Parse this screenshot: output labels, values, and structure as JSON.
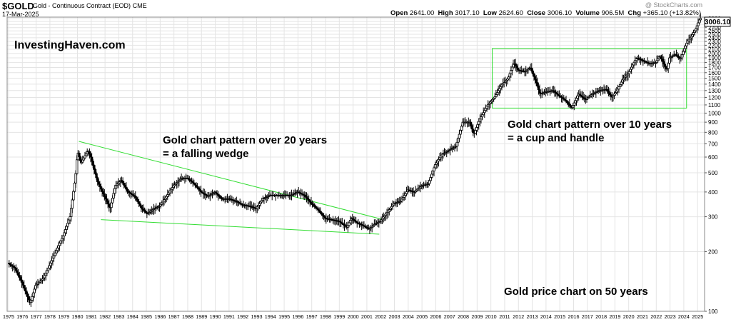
{
  "header": {
    "symbol": "$GOLD",
    "description": "Gold - Continuous Contract (EOD)",
    "exchange": "CME",
    "date": "17-Mar-2025",
    "watermark": "@ StockCharts.com",
    "open_label": "Open",
    "open": "2641.00",
    "high_label": "High",
    "high": "3017.10",
    "low_label": "Low",
    "low": "2624.60",
    "close_label": "Close",
    "close": "3006.10",
    "volume_label": "Volume",
    "volume": "906.5M",
    "chg_label": "Chg",
    "chg": "+365.10 (+13.82%)"
  },
  "annotations": {
    "brand": "InvestingHaven.com",
    "wedge_line1": "Gold chart pattern over 20 years",
    "wedge_line2": "= a falling wedge",
    "cup_line1": "Gold chart pattern over 10 years",
    "cup_line2": "= a cup and handle",
    "footer": "Gold price chart on 50 years"
  },
  "colors": {
    "pattern": "#33dd33",
    "candle": "#000000",
    "grid": "#e4e4e4",
    "tag_bg": "#ffffff"
  },
  "chart_data": {
    "type": "candlestick",
    "y_scale": "log",
    "ylim": [
      100,
      3050
    ],
    "x_range": [
      1975,
      2025.3
    ],
    "grid": true,
    "y_ticks": [
      100,
      200,
      300,
      400,
      500,
      600,
      700,
      800,
      900,
      1000,
      1100,
      1200,
      1300,
      1400,
      1500,
      1600,
      1700,
      1800,
      1900,
      2000,
      2100,
      2200,
      2300,
      2400,
      2500,
      2600,
      2700,
      2800,
      2900,
      3000
    ],
    "x_ticks": [
      "1975",
      "1976",
      "1977",
      "1978",
      "1979",
      "1980",
      "1981",
      "1982",
      "1983",
      "1984",
      "1985",
      "1986",
      "1987",
      "1988",
      "1989",
      "1990",
      "1991",
      "1992",
      "1993",
      "1994",
      "1995",
      "1996",
      "1997",
      "1998",
      "1999",
      "2000",
      "2001",
      "2002",
      "2003",
      "2004",
      "2005",
      "2006",
      "2007",
      "2008",
      "2009",
      "2010",
      "2011",
      "2012",
      "2013",
      "2014",
      "2015",
      "2016",
      "2017",
      "2018",
      "2019",
      "2020",
      "2021",
      "2022",
      "2023",
      "2024",
      "2025"
    ],
    "last_price_tag": "3006.10",
    "price_anchors": [
      [
        1975.0,
        175
      ],
      [
        1975.5,
        165
      ],
      [
        1976.0,
        140
      ],
      [
        1976.6,
        110
      ],
      [
        1977.0,
        135
      ],
      [
        1977.6,
        148
      ],
      [
        1978.0,
        170
      ],
      [
        1978.6,
        210
      ],
      [
        1979.0,
        240
      ],
      [
        1979.5,
        300
      ],
      [
        1979.9,
        480
      ],
      [
        1980.05,
        640
      ],
      [
        1980.3,
        560
      ],
      [
        1980.8,
        650
      ],
      [
        1981.0,
        600
      ],
      [
        1981.5,
        450
      ],
      [
        1982.0,
        380
      ],
      [
        1982.4,
        330
      ],
      [
        1982.8,
        430
      ],
      [
        1983.2,
        460
      ],
      [
        1983.7,
        400
      ],
      [
        1984.2,
        380
      ],
      [
        1984.7,
        330
      ],
      [
        1985.1,
        310
      ],
      [
        1985.6,
        330
      ],
      [
        1986.0,
        340
      ],
      [
        1986.5,
        380
      ],
      [
        1987.0,
        430
      ],
      [
        1987.6,
        470
      ],
      [
        1988.0,
        470
      ],
      [
        1988.5,
        440
      ],
      [
        1989.0,
        400
      ],
      [
        1989.5,
        380
      ],
      [
        1990.0,
        400
      ],
      [
        1990.5,
        370
      ],
      [
        1991.0,
        370
      ],
      [
        1991.5,
        360
      ],
      [
        1992.0,
        345
      ],
      [
        1992.5,
        340
      ],
      [
        1993.0,
        330
      ],
      [
        1993.5,
        370
      ],
      [
        1994.0,
        385
      ],
      [
        1994.5,
        385
      ],
      [
        1995.0,
        385
      ],
      [
        1995.5,
        385
      ],
      [
        1996.0,
        400
      ],
      [
        1996.5,
        385
      ],
      [
        1997.0,
        350
      ],
      [
        1997.5,
        325
      ],
      [
        1998.0,
        295
      ],
      [
        1998.5,
        290
      ],
      [
        1999.0,
        285
      ],
      [
        1999.6,
        265
      ],
      [
        1999.9,
        295
      ],
      [
        2000.3,
        280
      ],
      [
        2000.8,
        270
      ],
      [
        2001.2,
        260
      ],
      [
        2001.6,
        275
      ],
      [
        2002.0,
        285
      ],
      [
        2002.5,
        315
      ],
      [
        2003.0,
        350
      ],
      [
        2003.5,
        360
      ],
      [
        2004.0,
        410
      ],
      [
        2004.5,
        400
      ],
      [
        2005.0,
        430
      ],
      [
        2005.5,
        440
      ],
      [
        2006.0,
        550
      ],
      [
        2006.5,
        620
      ],
      [
        2007.0,
        650
      ],
      [
        2007.5,
        680
      ],
      [
        2008.0,
        900
      ],
      [
        2008.5,
        900
      ],
      [
        2008.8,
        780
      ],
      [
        2009.2,
        920
      ],
      [
        2009.8,
        1100
      ],
      [
        2010.3,
        1200
      ],
      [
        2010.8,
        1380
      ],
      [
        2011.3,
        1500
      ],
      [
        2011.7,
        1800
      ],
      [
        2012.0,
        1650
      ],
      [
        2012.5,
        1620
      ],
      [
        2012.9,
        1700
      ],
      [
        2013.3,
        1450
      ],
      [
        2013.6,
        1250
      ],
      [
        2014.0,
        1280
      ],
      [
        2014.5,
        1300
      ],
      [
        2015.0,
        1220
      ],
      [
        2015.5,
        1150
      ],
      [
        2015.9,
        1060
      ],
      [
        2016.4,
        1250
      ],
      [
        2016.9,
        1170
      ],
      [
        2017.4,
        1250
      ],
      [
        2017.9,
        1300
      ],
      [
        2018.4,
        1320
      ],
      [
        2018.8,
        1200
      ],
      [
        2019.2,
        1300
      ],
      [
        2019.6,
        1480
      ],
      [
        2020.0,
        1580
      ],
      [
        2020.6,
        1900
      ],
      [
        2021.0,
        1850
      ],
      [
        2021.5,
        1780
      ],
      [
        2022.0,
        1800
      ],
      [
        2022.3,
        1950
      ],
      [
        2022.8,
        1640
      ],
      [
        2023.0,
        1900
      ],
      [
        2023.4,
        1980
      ],
      [
        2023.8,
        1870
      ],
      [
        2024.0,
        2050
      ],
      [
        2024.3,
        2300
      ],
      [
        2024.6,
        2450
      ],
      [
        2024.9,
        2650
      ],
      [
        2025.21,
        3006
      ]
    ],
    "patterns": [
      {
        "name": "falling wedge",
        "upper": [
          [
            1980.1,
            720
          ],
          [
            2002.2,
            290
          ]
        ],
        "lower": [
          [
            1981.7,
            290
          ],
          [
            2001.9,
            245
          ]
        ]
      },
      {
        "name": "cup and handle",
        "box": [
          [
            2010.1,
            1060
          ],
          [
            2024.2,
            2120
          ]
        ]
      }
    ]
  }
}
